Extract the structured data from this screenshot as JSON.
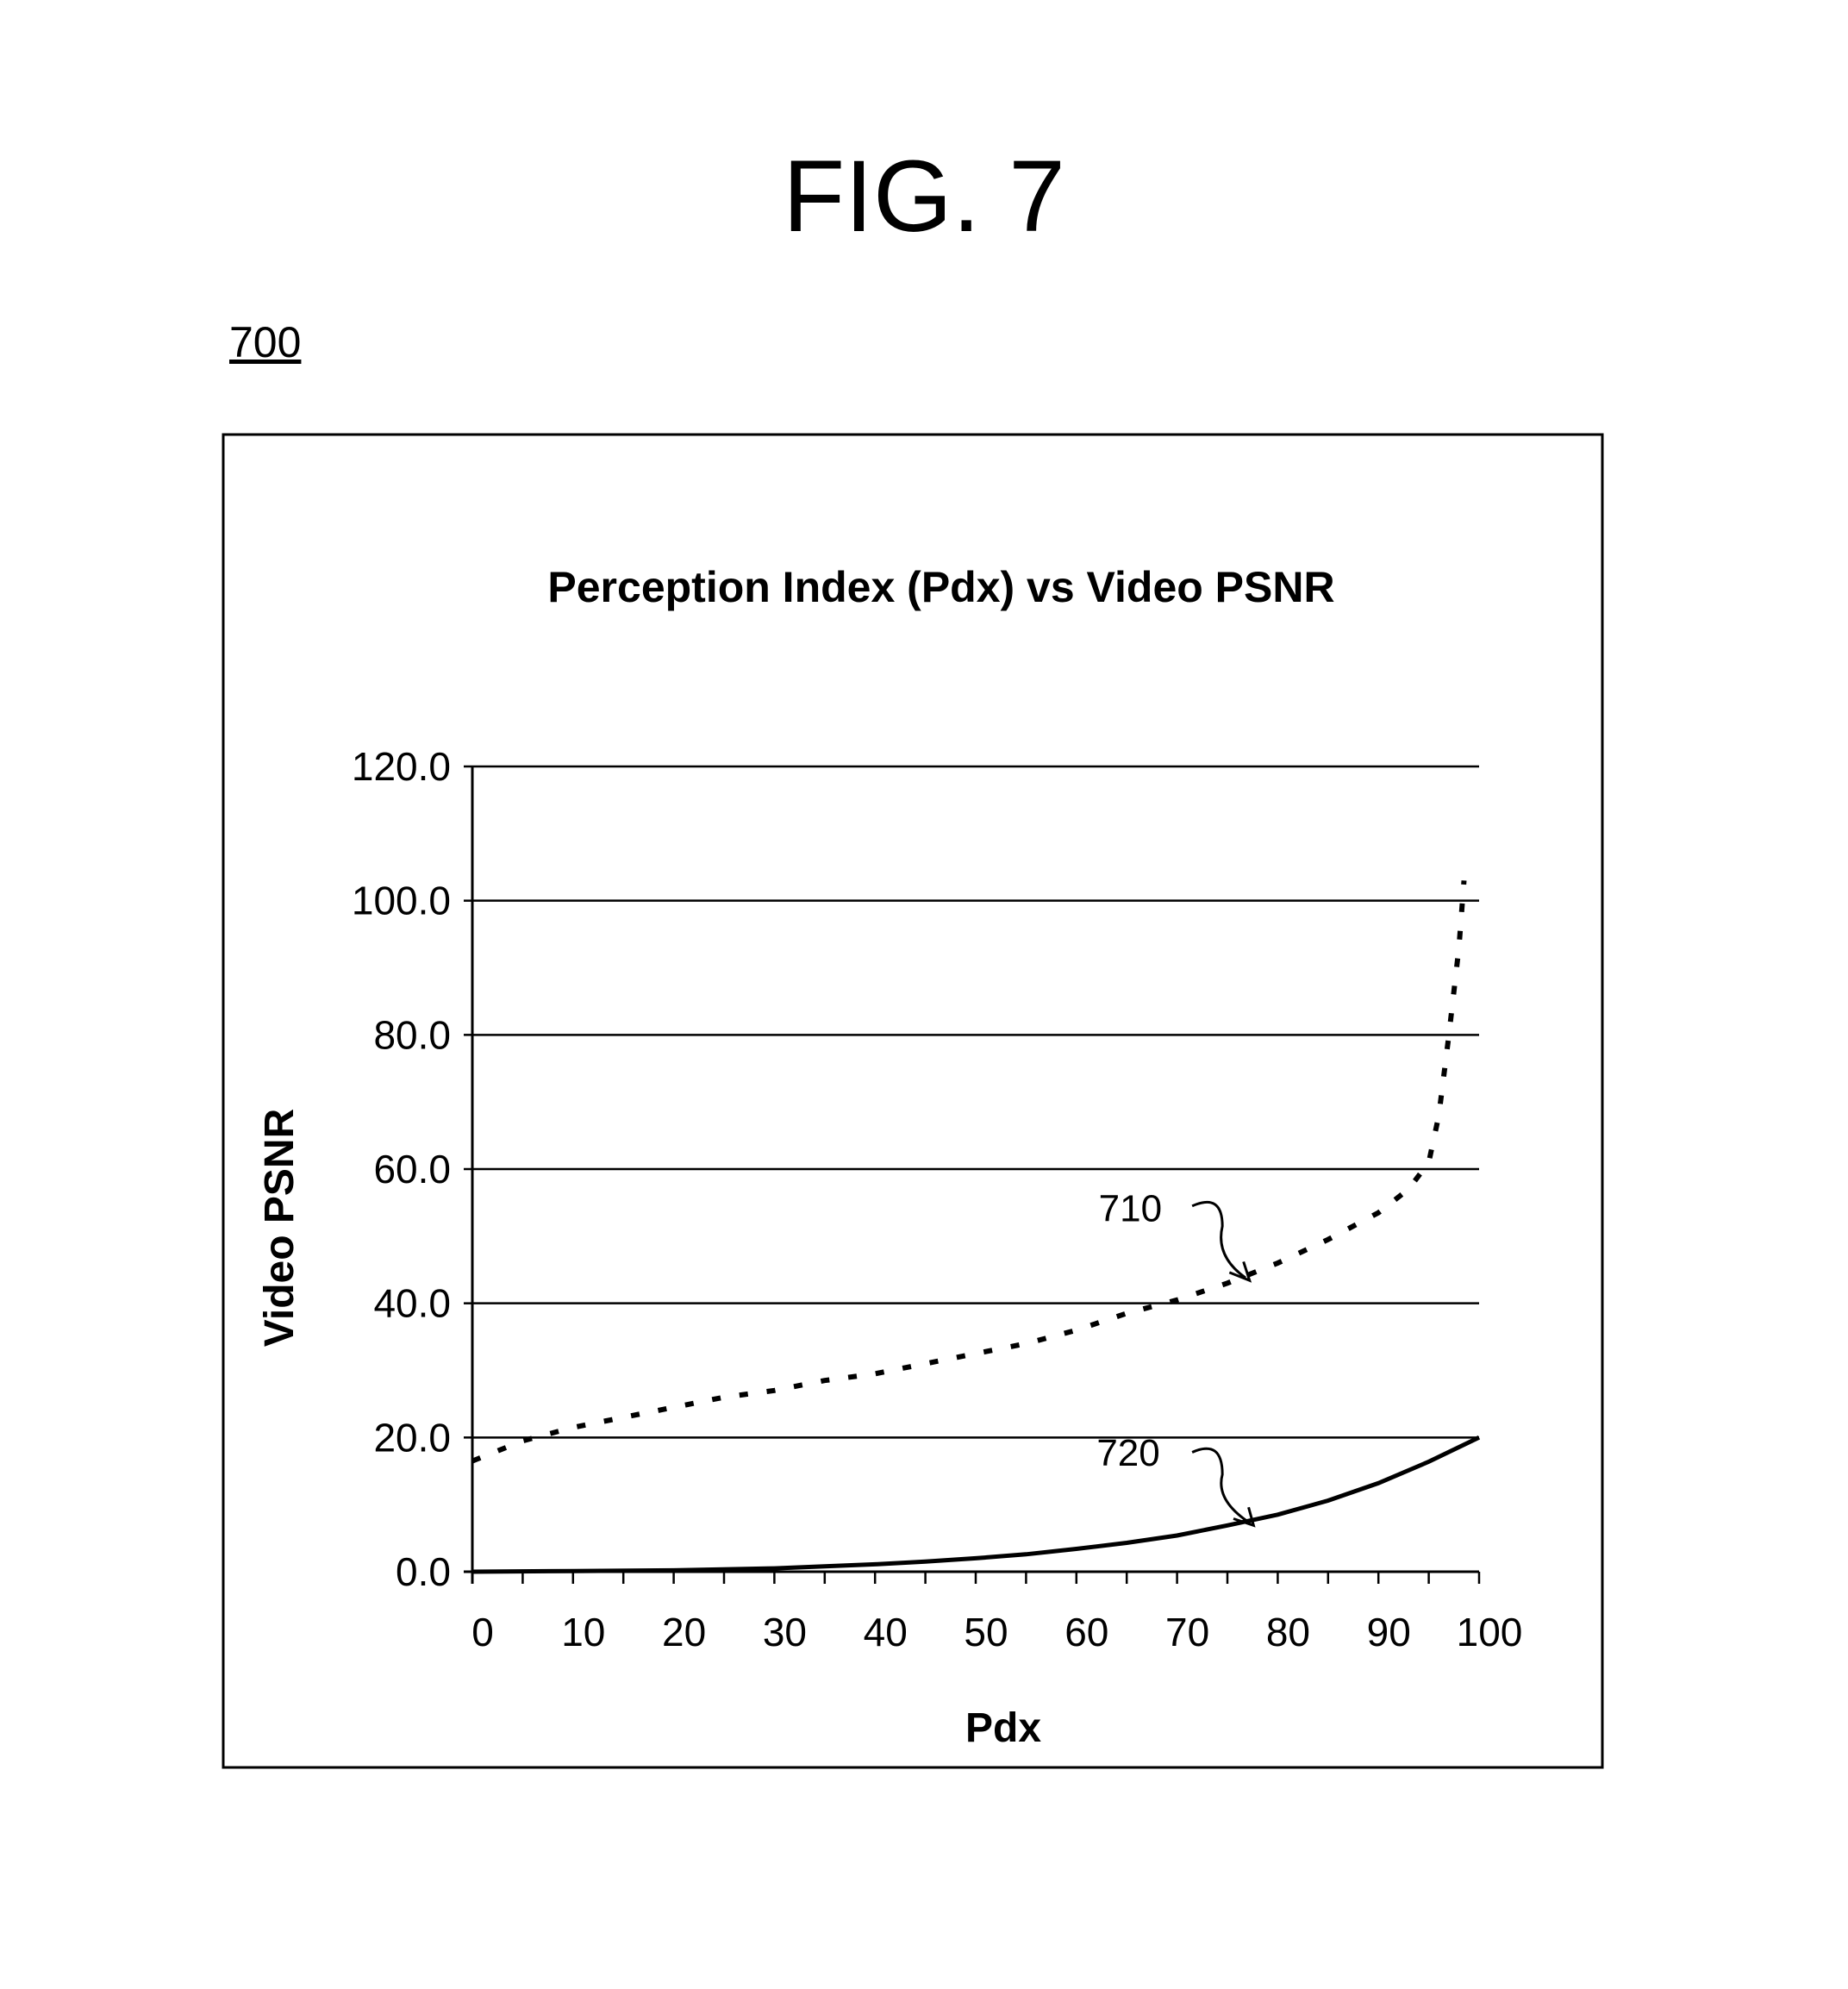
{
  "figure": {
    "title": "FIG. 7",
    "reference": "700"
  },
  "chart_data": {
    "type": "line",
    "title": "Perception Index (Pdx) vs Video PSNR",
    "xlabel": "Pdx",
    "ylabel": "Video PSNR",
    "xlim": [
      0,
      100
    ],
    "ylim": [
      0,
      120
    ],
    "x_ticks": [
      "0",
      "10",
      "20",
      "30",
      "40",
      "50",
      "60",
      "70",
      "80",
      "90",
      "100"
    ],
    "y_ticks": [
      "0.0",
      "20.0",
      "40.0",
      "60.0",
      "80.0",
      "100.0",
      "120.0"
    ],
    "grid": "horizontal",
    "series": [
      {
        "label": "710",
        "style": "dotted",
        "x": [
          0,
          5,
          10,
          15,
          20,
          25,
          30,
          35,
          40,
          45,
          50,
          55,
          60,
          65,
          70,
          75,
          80,
          85,
          90,
          93,
          95,
          96,
          97,
          98,
          98.5
        ],
        "y": [
          16.5,
          19.5,
          21.5,
          23,
          24.5,
          26,
          27,
          28.5,
          29.5,
          31,
          32.5,
          34,
          36,
          38.5,
          40.5,
          43,
          46,
          49.5,
          53.5,
          57,
          61,
          68,
          80,
          93,
          103
        ]
      },
      {
        "label": "720",
        "style": "solid",
        "x": [
          0,
          10,
          20,
          30,
          35,
          40,
          45,
          50,
          55,
          60,
          65,
          70,
          75,
          80,
          85,
          90,
          95,
          100
        ],
        "y": [
          0,
          0.1,
          0.2,
          0.5,
          0.8,
          1.1,
          1.5,
          2.0,
          2.6,
          3.4,
          4.3,
          5.4,
          6.9,
          8.5,
          10.6,
          13.2,
          16.4,
          20
        ]
      }
    ]
  }
}
